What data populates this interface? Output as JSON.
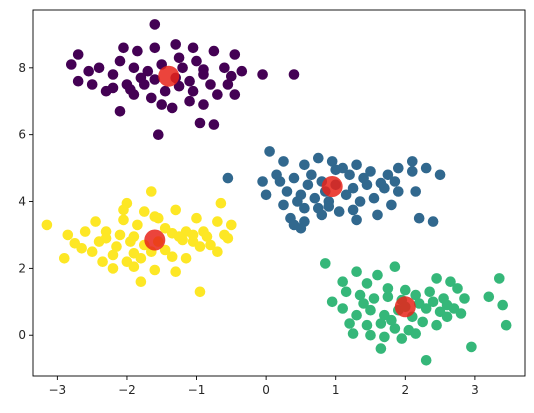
{
  "chart_data": {
    "type": "scatter",
    "title": "",
    "xlabel": "",
    "ylabel": "",
    "xlim": [
      -3.35,
      3.72
    ],
    "ylim": [
      -1.22,
      9.73
    ],
    "grid": false,
    "legend": "none",
    "xticks": [
      "−3",
      "−2",
      "−1",
      "0",
      "1",
      "2",
      "3"
    ],
    "xtick_values": [
      -3,
      -2,
      -1,
      0,
      1,
      2,
      3
    ],
    "yticks": [
      "0",
      "2",
      "4",
      "6",
      "8"
    ],
    "ytick_values": [
      0,
      2,
      4,
      6,
      8
    ],
    "series": [
      {
        "color": "#440154",
        "points": [
          [
            -1.6,
            9.3
          ],
          [
            -2.7,
            8.4
          ],
          [
            -2.05,
            8.6
          ],
          [
            -1.85,
            8.5
          ],
          [
            -1.6,
            8.6
          ],
          [
            -1.3,
            8.7
          ],
          [
            -1.05,
            8.6
          ],
          [
            -0.75,
            8.5
          ],
          [
            -0.45,
            8.4
          ],
          [
            -2.8,
            8.1
          ],
          [
            -2.4,
            8.0
          ],
          [
            -2.1,
            8.2
          ],
          [
            -1.9,
            8.0
          ],
          [
            -1.7,
            7.9
          ],
          [
            -1.5,
            8.1
          ],
          [
            -1.2,
            8.0
          ],
          [
            -1.0,
            8.2
          ],
          [
            -0.9,
            7.95
          ],
          [
            -0.6,
            8.0
          ],
          [
            -0.9,
            7.8
          ],
          [
            -1.1,
            7.6
          ],
          [
            -1.3,
            7.7
          ],
          [
            -1.6,
            7.65
          ],
          [
            -1.8,
            7.7
          ],
          [
            -2.0,
            7.5
          ],
          [
            -2.2,
            7.4
          ],
          [
            -2.5,
            7.5
          ],
          [
            -2.7,
            7.6
          ],
          [
            -1.45,
            7.3
          ],
          [
            -1.25,
            7.45
          ],
          [
            -1.05,
            7.3
          ],
          [
            -0.8,
            7.5
          ],
          [
            -0.55,
            7.5
          ],
          [
            -0.45,
            7.2
          ],
          [
            -1.65,
            7.1
          ],
          [
            -1.9,
            7.2
          ],
          [
            -1.35,
            6.8
          ],
          [
            -1.1,
            7.0
          ],
          [
            -0.9,
            6.9
          ],
          [
            -1.5,
            6.9
          ],
          [
            -2.1,
            6.7
          ],
          [
            -0.95,
            6.35
          ],
          [
            -0.75,
            6.3
          ],
          [
            -0.05,
            7.8
          ],
          [
            0.4,
            7.8
          ],
          [
            -1.55,
            6.0
          ],
          [
            -2.2,
            7.8
          ],
          [
            -1.75,
            7.5
          ],
          [
            -0.7,
            7.2
          ],
          [
            -1.25,
            8.3
          ],
          [
            -2.3,
            7.3
          ],
          [
            -1.95,
            7.35
          ],
          [
            -0.5,
            7.75
          ],
          [
            -0.35,
            7.9
          ],
          [
            -2.55,
            7.9
          ]
        ]
      },
      {
        "color": "#31688e",
        "points": [
          [
            0.05,
            5.5
          ],
          [
            0.25,
            5.2
          ],
          [
            0.55,
            5.1
          ],
          [
            0.75,
            5.3
          ],
          [
            0.95,
            5.2
          ],
          [
            1.1,
            5.0
          ],
          [
            1.3,
            5.1
          ],
          [
            1.5,
            4.9
          ],
          [
            1.75,
            4.8
          ],
          [
            1.9,
            5.0
          ],
          [
            2.1,
            5.2
          ],
          [
            2.3,
            5.0
          ],
          [
            2.5,
            4.8
          ],
          [
            2.1,
            4.9
          ],
          [
            0.2,
            4.6
          ],
          [
            0.4,
            4.7
          ],
          [
            0.6,
            4.5
          ],
          [
            0.8,
            4.6
          ],
          [
            1.0,
            4.5
          ],
          [
            1.25,
            4.4
          ],
          [
            1.45,
            4.5
          ],
          [
            1.7,
            4.4
          ],
          [
            1.9,
            4.3
          ],
          [
            2.15,
            4.3
          ],
          [
            0.3,
            4.3
          ],
          [
            0.5,
            4.2
          ],
          [
            0.7,
            4.1
          ],
          [
            0.9,
            4.0
          ],
          [
            1.15,
            4.2
          ],
          [
            1.35,
            4.0
          ],
          [
            1.55,
            4.1
          ],
          [
            1.8,
            3.9
          ],
          [
            0.0,
            4.2
          ],
          [
            0.25,
            3.9
          ],
          [
            0.55,
            3.8
          ],
          [
            0.75,
            3.8
          ],
          [
            1.05,
            3.7
          ],
          [
            1.25,
            3.75
          ],
          [
            1.6,
            3.6
          ],
          [
            0.35,
            3.5
          ],
          [
            0.55,
            3.4
          ],
          [
            0.8,
            3.6
          ],
          [
            1.3,
            3.45
          ],
          [
            2.2,
            3.5
          ],
          [
            2.4,
            3.4
          ],
          [
            0.5,
            3.2
          ],
          [
            0.9,
            3.85
          ],
          [
            -0.05,
            4.6
          ],
          [
            1.4,
            4.7
          ],
          [
            0.65,
            4.8
          ],
          [
            1.65,
            4.55
          ],
          [
            1.0,
            4.95
          ],
          [
            0.45,
            4.0
          ],
          [
            1.85,
            4.6
          ],
          [
            -0.55,
            4.7
          ],
          [
            0.15,
            4.8
          ],
          [
            0.85,
            4.3
          ],
          [
            1.2,
            4.8
          ],
          [
            0.4,
            3.3
          ]
        ]
      },
      {
        "color": "#35b779",
        "points": [
          [
            1.85,
            2.05
          ],
          [
            1.3,
            1.9
          ],
          [
            1.6,
            1.8
          ],
          [
            0.85,
            2.15
          ],
          [
            1.1,
            1.6
          ],
          [
            1.45,
            1.55
          ],
          [
            2.45,
            1.7
          ],
          [
            2.65,
            1.6
          ],
          [
            3.35,
            1.7
          ],
          [
            0.95,
            1.0
          ],
          [
            1.15,
            1.3
          ],
          [
            1.35,
            1.2
          ],
          [
            1.55,
            1.1
          ],
          [
            1.75,
            1.15
          ],
          [
            1.95,
            1.05
          ],
          [
            2.15,
            1.2
          ],
          [
            2.35,
            1.3
          ],
          [
            2.55,
            1.1
          ],
          [
            2.75,
            1.4
          ],
          [
            2.85,
            1.1
          ],
          [
            3.2,
            1.15
          ],
          [
            3.4,
            0.9
          ],
          [
            1.1,
            0.8
          ],
          [
            1.3,
            0.6
          ],
          [
            1.5,
            0.75
          ],
          [
            1.7,
            0.6
          ],
          [
            1.9,
            0.75
          ],
          [
            2.1,
            0.55
          ],
          [
            2.3,
            0.8
          ],
          [
            2.5,
            0.7
          ],
          [
            2.6,
            0.55
          ],
          [
            2.8,
            0.65
          ],
          [
            1.2,
            0.35
          ],
          [
            1.45,
            0.3
          ],
          [
            1.65,
            0.35
          ],
          [
            1.85,
            0.2
          ],
          [
            2.05,
            0.15
          ],
          [
            2.25,
            0.4
          ],
          [
            2.45,
            0.3
          ],
          [
            3.45,
            0.3
          ],
          [
            1.25,
            0.05
          ],
          [
            1.5,
            0.0
          ],
          [
            1.7,
            -0.05
          ],
          [
            1.95,
            -0.1
          ],
          [
            2.15,
            0.05
          ],
          [
            1.65,
            -0.4
          ],
          [
            2.95,
            -0.35
          ],
          [
            2.3,
            -0.75
          ],
          [
            1.75,
            1.4
          ],
          [
            2.0,
            1.35
          ],
          [
            2.2,
            0.95
          ],
          [
            2.6,
            0.9
          ],
          [
            1.4,
            0.95
          ],
          [
            2.4,
            1.0
          ],
          [
            2.7,
            0.8
          ],
          [
            1.8,
            0.45
          ],
          [
            2.0,
            0.85
          ]
        ]
      },
      {
        "color": "#fde725",
        "points": [
          [
            -1.65,
            4.3
          ],
          [
            -2.0,
            3.95
          ],
          [
            -1.75,
            3.7
          ],
          [
            -1.55,
            3.5
          ],
          [
            -1.3,
            3.75
          ],
          [
            -0.65,
            3.95
          ],
          [
            -2.45,
            3.4
          ],
          [
            -2.05,
            3.45
          ],
          [
            -1.85,
            3.3
          ],
          [
            -1.6,
            3.55
          ],
          [
            -1.0,
            3.5
          ],
          [
            -0.7,
            3.4
          ],
          [
            -0.5,
            3.3
          ],
          [
            -3.15,
            3.3
          ],
          [
            -2.85,
            3.0
          ],
          [
            -2.6,
            3.1
          ],
          [
            -2.3,
            3.1
          ],
          [
            -2.1,
            3.0
          ],
          [
            -1.9,
            2.95
          ],
          [
            -1.35,
            3.05
          ],
          [
            -1.15,
            3.1
          ],
          [
            -0.9,
            3.1
          ],
          [
            -0.6,
            3.0
          ],
          [
            -2.75,
            2.75
          ],
          [
            -2.4,
            2.8
          ],
          [
            -2.15,
            2.65
          ],
          [
            -1.95,
            2.8
          ],
          [
            -1.75,
            2.7
          ],
          [
            -1.2,
            2.85
          ],
          [
            -1.05,
            2.8
          ],
          [
            -0.8,
            2.7
          ],
          [
            -2.5,
            2.5
          ],
          [
            -2.2,
            2.4
          ],
          [
            -1.9,
            2.45
          ],
          [
            -1.65,
            2.5
          ],
          [
            -1.45,
            2.55
          ],
          [
            -0.95,
            2.65
          ],
          [
            -0.7,
            2.5
          ],
          [
            -2.9,
            2.3
          ],
          [
            -2.35,
            2.2
          ],
          [
            -2.0,
            2.2
          ],
          [
            -1.8,
            2.3
          ],
          [
            -1.35,
            2.35
          ],
          [
            -1.15,
            2.3
          ],
          [
            -2.2,
            2.0
          ],
          [
            -1.9,
            2.05
          ],
          [
            -1.6,
            1.95
          ],
          [
            -1.3,
            1.9
          ],
          [
            -1.8,
            1.6
          ],
          [
            -0.95,
            1.3
          ],
          [
            -1.05,
            3.0
          ],
          [
            -1.25,
            2.95
          ],
          [
            -0.85,
            2.95
          ],
          [
            -2.05,
            3.75
          ],
          [
            -1.55,
            2.8
          ],
          [
            -2.3,
            2.9
          ],
          [
            -1.45,
            3.2
          ],
          [
            -0.55,
            2.9
          ],
          [
            -2.65,
            2.6
          ]
        ]
      }
    ],
    "centers": {
      "color": "#e8231a",
      "points": [
        [
          -1.4,
          7.75
        ],
        [
          0.95,
          4.45
        ],
        [
          2.0,
          0.85
        ],
        [
          -1.6,
          2.85
        ]
      ]
    }
  }
}
